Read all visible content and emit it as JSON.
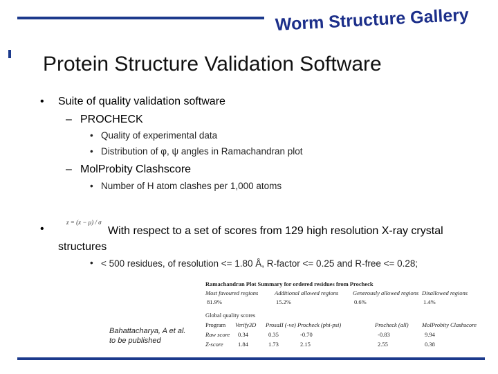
{
  "header": {
    "logo": "Worm Structure Gallery",
    "title": "Protein Structure Validation Software"
  },
  "bullets": [
    {
      "text": "Suite of quality validation software",
      "items": [
        {
          "text": "PROCHECK",
          "items": [
            "Quality of experimental data",
            "Distribution of φ, ψ angles in Ramachandran plot"
          ]
        },
        {
          "text": "MolProbity Clashscore",
          "items": [
            "Number of H atom clashes per 1,000 atoms"
          ]
        }
      ]
    },
    {
      "formula": "z = (x − μ) / σ",
      "text": "With respect to a set of scores from 129 high resolution X-ray crystal structures",
      "items": [
        "< 500 residues, of resolution <= 1.80 Å, R-factor <= 0.25 and R-free <= 0.28;"
      ]
    }
  ],
  "citation": [
    "Bahattacharya, A et al.",
    "to be published"
  ],
  "table": {
    "title": "Ramachandran Plot Summary for ordered residues from Procheck",
    "rama_header": [
      "Most favoured regions",
      "Additional allowed regions",
      "Generously allowed regions",
      "Disallowed regions"
    ],
    "rama_row": [
      "81.9%",
      "15.2%",
      "0.6%",
      "1.4%"
    ],
    "global_title": "Global quality scores",
    "global_header": [
      "Program",
      "Verify3D",
      "ProsaII (-ve)",
      "Procheck (phi-psi)",
      "Procheck (all)",
      "MolProbity Clashscore"
    ],
    "global_rows": [
      [
        "Raw score",
        "0.34",
        "0.35",
        "-0.70",
        "-0.83",
        "9.94"
      ],
      [
        "Z-score",
        "1.84",
        "1.73",
        "2.15",
        "2.55",
        "0.38"
      ]
    ]
  }
}
